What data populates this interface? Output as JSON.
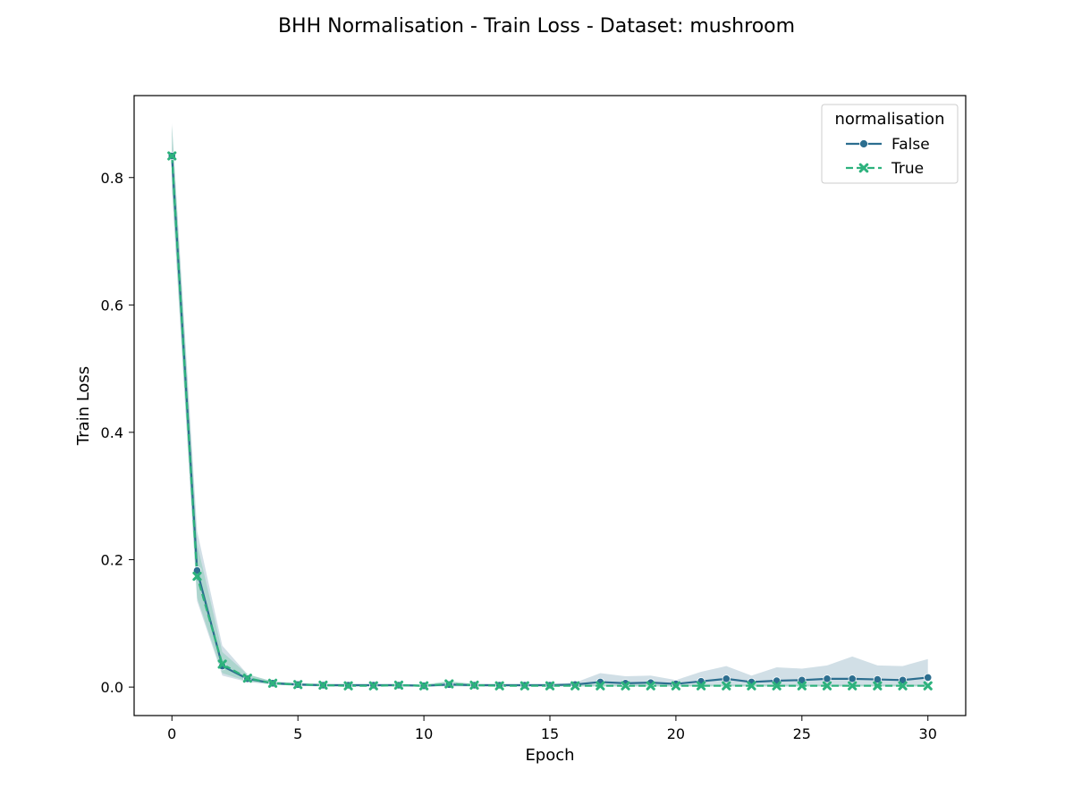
{
  "chart_data": {
    "type": "line",
    "title": "BHH Normalisation - Train Loss - Dataset: mushroom",
    "xlabel": "Epoch",
    "ylabel": "Train Loss",
    "xlim": [
      -1.5,
      31.5
    ],
    "ylim": [
      -0.0447,
      0.9287
    ],
    "xticks": [
      0,
      5,
      10,
      15,
      20,
      25,
      30
    ],
    "yticks": [
      0.0,
      0.2,
      0.4,
      0.6,
      0.8
    ],
    "xtick_labels": [
      "0",
      "5",
      "10",
      "15",
      "20",
      "25",
      "30"
    ],
    "ytick_labels": [
      "0.0",
      "0.2",
      "0.4",
      "0.6",
      "0.8"
    ],
    "grid": false,
    "legend": {
      "title": "normalisation",
      "position": "upper right"
    },
    "x": [
      0,
      1,
      2,
      3,
      4,
      5,
      6,
      7,
      8,
      9,
      10,
      11,
      12,
      13,
      14,
      15,
      16,
      17,
      18,
      19,
      20,
      21,
      22,
      23,
      24,
      25,
      26,
      27,
      28,
      29,
      30
    ],
    "series": [
      {
        "name": "False",
        "color": "#2c6e8f",
        "marker": "circle",
        "dash": "solid",
        "values": [
          0.834,
          0.183,
          0.033,
          0.013,
          0.006,
          0.004,
          0.003,
          0.003,
          0.003,
          0.003,
          0.002,
          0.004,
          0.003,
          0.003,
          0.003,
          0.003,
          0.004,
          0.008,
          0.006,
          0.007,
          0.005,
          0.009,
          0.013,
          0.008,
          0.01,
          0.011,
          0.013,
          0.013,
          0.012,
          0.011,
          0.015
        ],
        "band_low": [
          0.78,
          0.135,
          0.018,
          0.008,
          0.004,
          0.002,
          0.001,
          0.001,
          0.001,
          0.001,
          0.001,
          0.001,
          0.001,
          0.001,
          0.001,
          0.001,
          0.001,
          0.001,
          0.001,
          0.001,
          0.001,
          0.001,
          0.001,
          0.001,
          0.001,
          0.001,
          0.001,
          0.001,
          0.001,
          0.001,
          0.001
        ],
        "band_high": [
          0.885,
          0.245,
          0.065,
          0.02,
          0.009,
          0.006,
          0.005,
          0.005,
          0.005,
          0.005,
          0.004,
          0.008,
          0.005,
          0.005,
          0.005,
          0.005,
          0.007,
          0.022,
          0.017,
          0.018,
          0.011,
          0.024,
          0.033,
          0.018,
          0.031,
          0.029,
          0.034,
          0.048,
          0.034,
          0.033,
          0.044
        ]
      },
      {
        "name": "True",
        "color": "#2db27d",
        "marker": "x",
        "dash": "dashed",
        "values": [
          0.834,
          0.174,
          0.036,
          0.014,
          0.006,
          0.004,
          0.003,
          0.002,
          0.002,
          0.003,
          0.002,
          0.005,
          0.003,
          0.002,
          0.002,
          0.002,
          0.002,
          0.002,
          0.002,
          0.002,
          0.002,
          0.002,
          0.002,
          0.002,
          0.002,
          0.002,
          0.002,
          0.002,
          0.002,
          0.002,
          0.002
        ],
        "band_low": [
          0.79,
          0.14,
          0.022,
          0.009,
          0.004,
          0.002,
          0.001,
          0.001,
          0.001,
          0.001,
          0.001,
          0.002,
          0.001,
          0.001,
          0.001,
          0.001,
          0.001,
          0.001,
          0.001,
          0.001,
          0.001,
          0.001,
          0.001,
          0.001,
          0.001,
          0.001,
          0.001,
          0.001,
          0.001,
          0.001,
          0.001
        ],
        "band_high": [
          0.882,
          0.225,
          0.055,
          0.02,
          0.009,
          0.006,
          0.005,
          0.004,
          0.004,
          0.005,
          0.004,
          0.01,
          0.005,
          0.004,
          0.004,
          0.004,
          0.004,
          0.004,
          0.004,
          0.004,
          0.004,
          0.004,
          0.004,
          0.004,
          0.004,
          0.004,
          0.004,
          0.004,
          0.004,
          0.004,
          0.004
        ]
      }
    ]
  }
}
